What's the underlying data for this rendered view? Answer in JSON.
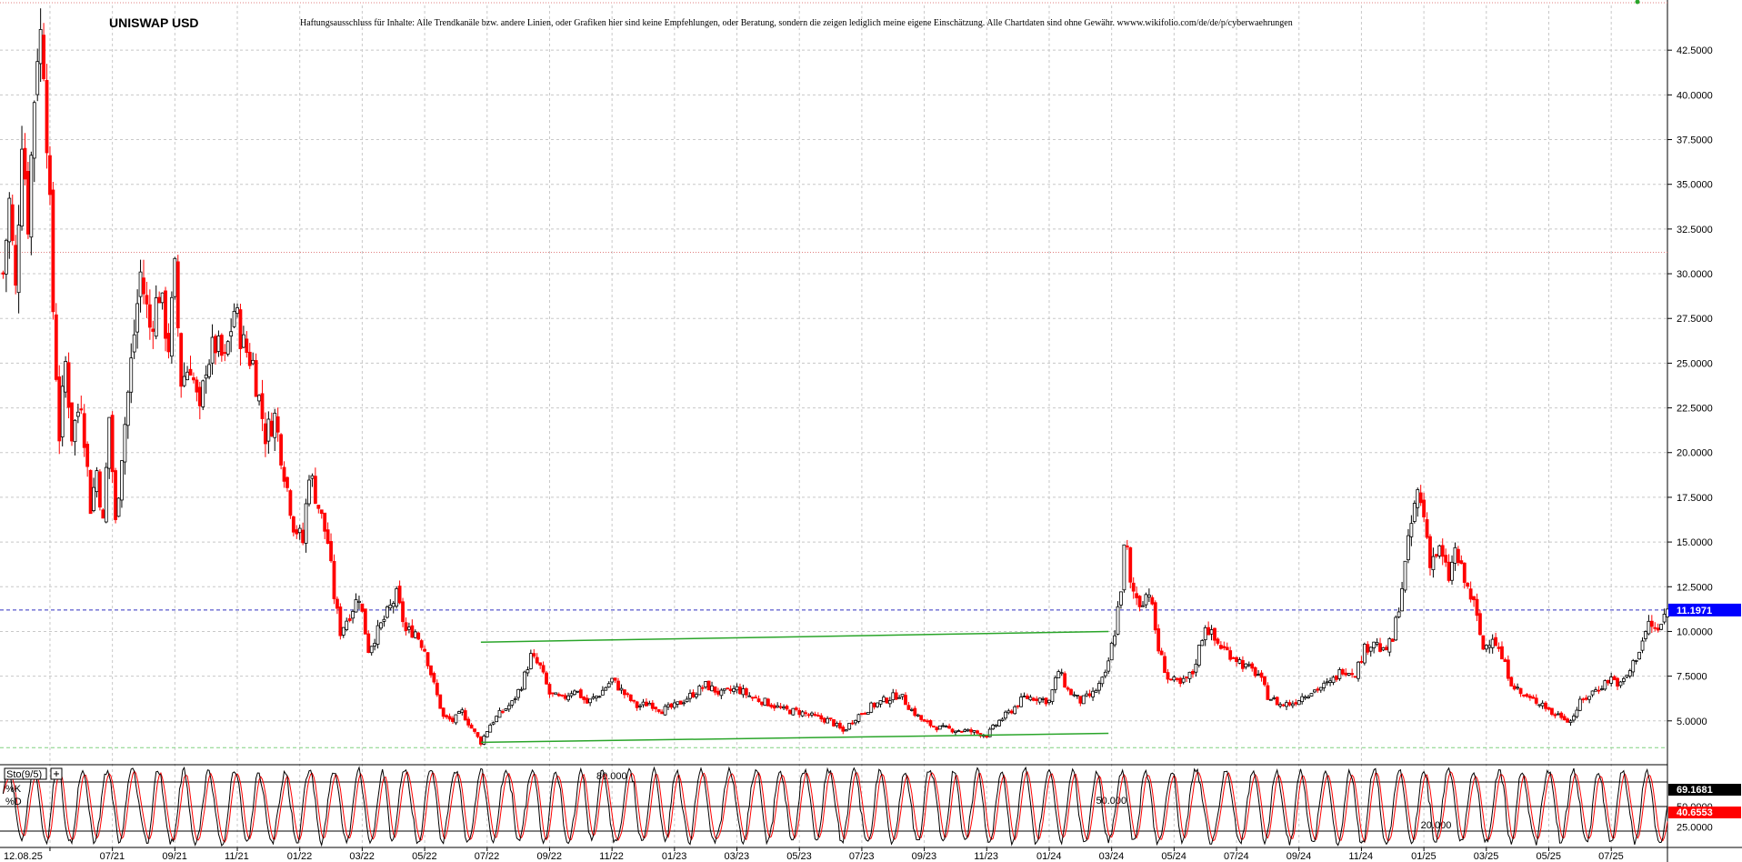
{
  "chart_data": {
    "type": "line",
    "title": "UNISWAP USD",
    "subtitle": "Haftungsausschluss für Inhalte: Alle Trendkanäle bzw. andere Linien, oder Grafiken hier sind keine Empfehlungen, oder Beratung, sondern die zeigen lediglich meine eigene Einschätzung. Alle Chartdaten sind ohne Gewähr. wwww.wikifolio.com/de/de/p/cyberwaehrungen",
    "grid": true,
    "price_axis": {
      "ylim": [
        2.6,
        45.0
      ],
      "ticks": [
        "42.5000",
        "40.0000",
        "37.5000",
        "35.0000",
        "32.5000",
        "30.0000",
        "27.5000",
        "25.0000",
        "22.5000",
        "20.0000",
        "17.5000",
        "15.0000",
        "12.5000",
        "10.0000",
        "7.5000",
        "5.0000"
      ],
      "tick_values": [
        42.5,
        40,
        37.5,
        35,
        32.5,
        30,
        27.5,
        25,
        22.5,
        20,
        17.5,
        15,
        12.5,
        10,
        7.5,
        5
      ]
    },
    "x_ticks": [
      "12.08.25",
      "07/21",
      "09/21",
      "11/21",
      "01/22",
      "03/22",
      "05/22",
      "07/22",
      "09/22",
      "11/22",
      "01/23",
      "03/23",
      "05/23",
      "07/23",
      "09/23",
      "11/23",
      "01/24",
      "03/24",
      "05/24",
      "07/24",
      "09/24",
      "11/24",
      "01/25",
      "03/25",
      "05/25",
      "07/25"
    ],
    "x_tick_months": [
      0,
      2,
      4,
      6,
      8,
      10,
      12,
      14,
      16,
      18,
      20,
      22,
      24,
      26,
      28,
      30,
      32,
      34,
      36,
      38,
      40,
      42,
      44,
      46,
      48,
      50
    ],
    "x_range_months": [
      -1.6,
      51.8
    ],
    "series": [
      {
        "name": "",
        "points": [
          [
            -1.5,
            30
          ],
          [
            -1.3,
            34
          ],
          [
            -1.1,
            29
          ],
          [
            -0.9,
            38
          ],
          [
            -0.7,
            33
          ],
          [
            -0.5,
            40
          ],
          [
            -0.35,
            44
          ],
          [
            -0.2,
            42
          ],
          [
            -0.05,
            36
          ],
          [
            0.1,
            28
          ],
          [
            0.3,
            21
          ],
          [
            0.5,
            25
          ],
          [
            0.7,
            21
          ],
          [
            1.0,
            23
          ],
          [
            1.3,
            17
          ],
          [
            1.5,
            19
          ],
          [
            1.7,
            16
          ],
          [
            1.9,
            22
          ],
          [
            2.1,
            16
          ],
          [
            2.3,
            20
          ],
          [
            2.6,
            25
          ],
          [
            2.9,
            30
          ],
          [
            3.2,
            27
          ],
          [
            3.5,
            29
          ],
          [
            3.8,
            26
          ],
          [
            4.0,
            30
          ],
          [
            4.2,
            24
          ],
          [
            4.5,
            25
          ],
          [
            4.8,
            22
          ],
          [
            5.0,
            25
          ],
          [
            5.3,
            26
          ],
          [
            5.6,
            25
          ],
          [
            5.9,
            28
          ],
          [
            6.2,
            26
          ],
          [
            6.5,
            25
          ],
          [
            6.7,
            23
          ],
          [
            6.9,
            21
          ],
          [
            7.2,
            22
          ],
          [
            7.5,
            19
          ],
          [
            7.8,
            16
          ],
          [
            8.1,
            15
          ],
          [
            8.3,
            19
          ],
          [
            8.6,
            17
          ],
          [
            8.9,
            15
          ],
          [
            9.1,
            12
          ],
          [
            9.3,
            10
          ],
          [
            9.6,
            11
          ],
          [
            9.9,
            12
          ],
          [
            10.2,
            9
          ],
          [
            10.5,
            10
          ],
          [
            10.8,
            11
          ],
          [
            11.1,
            12
          ],
          [
            11.4,
            10
          ],
          [
            11.7,
            10
          ],
          [
            12.0,
            9
          ],
          [
            12.3,
            7
          ],
          [
            12.6,
            5.2
          ],
          [
            12.9,
            5.0
          ],
          [
            13.2,
            5.5
          ],
          [
            13.5,
            4.6
          ],
          [
            13.8,
            3.8
          ],
          [
            14.1,
            4.8
          ],
          [
            14.4,
            5.4
          ],
          [
            14.8,
            6.0
          ],
          [
            15.1,
            7.0
          ],
          [
            15.4,
            8.6
          ],
          [
            15.7,
            8.0
          ],
          [
            16.0,
            6.5
          ],
          [
            16.4,
            6.2
          ],
          [
            16.8,
            6.8
          ],
          [
            17.2,
            6.0
          ],
          [
            17.6,
            6.5
          ],
          [
            18.0,
            7.3
          ],
          [
            18.4,
            6.5
          ],
          [
            18.8,
            5.8
          ],
          [
            19.2,
            6.0
          ],
          [
            19.6,
            5.6
          ],
          [
            20.0,
            5.8
          ],
          [
            20.5,
            6.4
          ],
          [
            21.0,
            7.0
          ],
          [
            21.5,
            6.5
          ],
          [
            22.0,
            6.8
          ],
          [
            22.5,
            6.3
          ],
          [
            23.0,
            6.0
          ],
          [
            23.5,
            5.6
          ],
          [
            24.0,
            5.5
          ],
          [
            24.5,
            5.2
          ],
          [
            25.0,
            5.0
          ],
          [
            25.4,
            4.4
          ],
          [
            25.8,
            5.2
          ],
          [
            26.3,
            5.8
          ],
          [
            26.8,
            6.2
          ],
          [
            27.2,
            6.5
          ],
          [
            27.6,
            5.6
          ],
          [
            28.0,
            4.9
          ],
          [
            28.5,
            4.6
          ],
          [
            29.0,
            4.5
          ],
          [
            29.5,
            4.4
          ],
          [
            30.0,
            4.2
          ],
          [
            30.4,
            5.0
          ],
          [
            30.8,
            5.6
          ],
          [
            31.2,
            6.3
          ],
          [
            31.6,
            6.3
          ],
          [
            32.0,
            6.1
          ],
          [
            32.3,
            7.8
          ],
          [
            32.6,
            6.7
          ],
          [
            33.0,
            6.1
          ],
          [
            33.4,
            6.5
          ],
          [
            33.8,
            7.5
          ],
          [
            34.1,
            10.0
          ],
          [
            34.3,
            12.5
          ],
          [
            34.45,
            15.5
          ],
          [
            34.6,
            12.5
          ],
          [
            34.9,
            11.6
          ],
          [
            35.2,
            12.3
          ],
          [
            35.5,
            9.0
          ],
          [
            35.8,
            7.4
          ],
          [
            36.2,
            7.0
          ],
          [
            36.6,
            7.7
          ],
          [
            37.0,
            10.4
          ],
          [
            37.3,
            9.5
          ],
          [
            37.6,
            9.0
          ],
          [
            38.0,
            8.5
          ],
          [
            38.3,
            8.0
          ],
          [
            38.7,
            7.6
          ],
          [
            39.0,
            6.4
          ],
          [
            39.4,
            5.9
          ],
          [
            39.8,
            6.0
          ],
          [
            40.2,
            6.5
          ],
          [
            40.6,
            6.8
          ],
          [
            41.0,
            7.1
          ],
          [
            41.4,
            7.9
          ],
          [
            41.8,
            7.7
          ],
          [
            42.1,
            9.0
          ],
          [
            42.4,
            9.5
          ],
          [
            42.7,
            8.8
          ],
          [
            43.0,
            9.5
          ],
          [
            43.3,
            12.5
          ],
          [
            43.6,
            16.0
          ],
          [
            43.8,
            17.8
          ],
          [
            44.0,
            16.5
          ],
          [
            44.2,
            14.0
          ],
          [
            44.5,
            14.5
          ],
          [
            44.8,
            13.0
          ],
          [
            45.0,
            14.5
          ],
          [
            45.3,
            12.8
          ],
          [
            45.6,
            11.5
          ],
          [
            45.9,
            9.0
          ],
          [
            46.2,
            9.8
          ],
          [
            46.5,
            8.5
          ],
          [
            46.8,
            7.2
          ],
          [
            47.1,
            6.5
          ],
          [
            47.4,
            6.2
          ],
          [
            47.8,
            6.0
          ],
          [
            48.1,
            5.4
          ],
          [
            48.4,
            5.3
          ],
          [
            48.7,
            5.0
          ],
          [
            49.0,
            6.0
          ],
          [
            49.4,
            6.6
          ],
          [
            49.7,
            7.0
          ],
          [
            50.0,
            7.4
          ],
          [
            50.3,
            7.0
          ],
          [
            50.6,
            7.8
          ],
          [
            50.9,
            9.0
          ],
          [
            51.2,
            10.4
          ],
          [
            51.5,
            10.0
          ],
          [
            51.8,
            11.2
          ]
        ]
      }
    ],
    "trend_lines": [
      {
        "color": "#2aa52a",
        "from": [
          13.8,
          9.4
        ],
        "to": [
          33.9,
          10.0
        ]
      },
      {
        "color": "#2aa52a",
        "from": [
          13.8,
          3.8
        ],
        "to": [
          33.9,
          4.3
        ]
      }
    ],
    "reference_lines": [
      {
        "value": 31.2,
        "color": "#e08080",
        "style": "dotted"
      },
      {
        "value": 11.1971,
        "color": "#3030c0",
        "style": "dashed"
      },
      {
        "value": 3.5,
        "color": "#80d080",
        "style": "dashed"
      }
    ],
    "current_price": "11.1971",
    "indicator": {
      "name": "Sto(9/5)",
      "k_label": "%K",
      "d_label": "%D",
      "k_value": "69.1681",
      "d_value": "40.6553",
      "levels": [
        "80.000",
        "50.000",
        "20.000"
      ],
      "level_values": [
        80,
        50,
        20
      ],
      "axis_ticks": [
        "50.0000",
        "25.0000"
      ],
      "axis_tick_values": [
        50,
        25
      ],
      "ylim": [
        0,
        100
      ]
    }
  },
  "colors": {
    "candle_up": "#000000",
    "candle_down": "#ff0000",
    "grid": "#c8c8c8",
    "price_tag": "#0000ff",
    "k_tag": "#000000",
    "d_tag": "#ff0000"
  }
}
